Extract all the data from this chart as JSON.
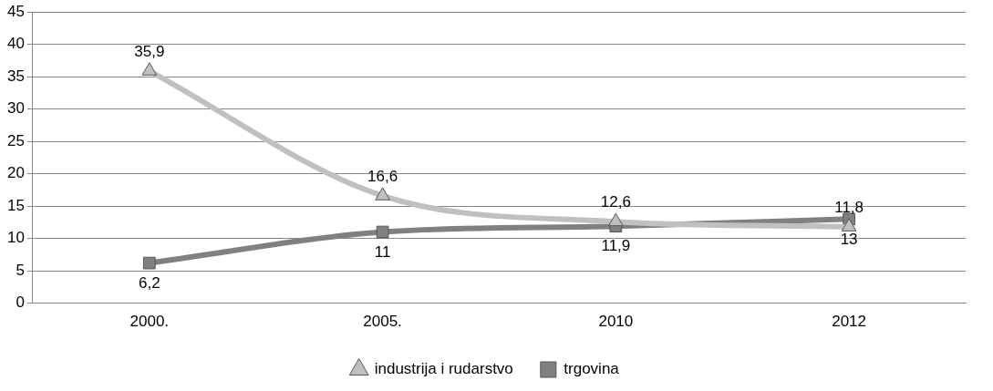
{
  "chart_data": {
    "type": "line",
    "categories": [
      "2000.",
      "2005.",
      "2010",
      "2012"
    ],
    "series": [
      {
        "name": "industrija i rudarstvo",
        "color": "#c0c0c0",
        "marker": "triangle",
        "values": [
          35.9,
          16.6,
          12.6,
          11.8
        ],
        "value_labels": [
          "35,9",
          "16,6",
          "12,6",
          "11,8"
        ]
      },
      {
        "name": "trgovina",
        "color": "#808080",
        "marker": "square",
        "values": [
          6.2,
          11,
          11.9,
          13
        ],
        "value_labels": [
          "6,2",
          "11",
          "11,9",
          "13"
        ]
      }
    ],
    "ylim": [
      0,
      45
    ],
    "yticks": [
      0,
      5,
      10,
      15,
      20,
      25,
      30,
      35,
      40,
      45
    ],
    "grid": "y",
    "legend": "bottom"
  }
}
